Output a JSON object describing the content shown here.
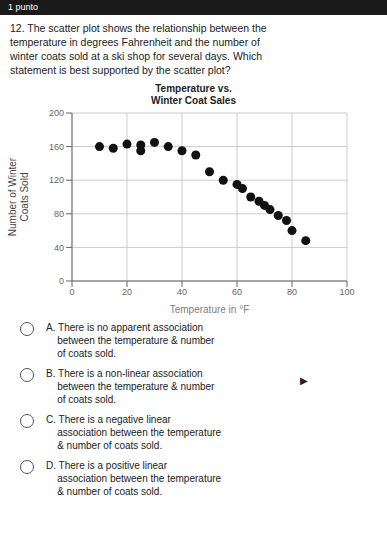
{
  "chart_data": {
    "type": "scatter",
    "title": "Temperature vs.\nWinter Coat Sales",
    "xlabel": "Temperature in °F",
    "ylabel": "Number of Winter\nCoats Sold",
    "x": [
      10,
      15,
      20,
      25,
      25,
      30,
      35,
      40,
      45,
      50,
      55,
      60,
      62,
      65,
      68,
      70,
      72,
      75,
      78,
      80,
      85
    ],
    "values": [
      160,
      158,
      163,
      162,
      155,
      165,
      160,
      155,
      150,
      130,
      120,
      115,
      110,
      100,
      95,
      90,
      85,
      78,
      72,
      60,
      48
    ],
    "xlim": [
      0,
      100
    ],
    "ylim": [
      0,
      200
    ],
    "xticks": [
      0,
      20,
      40,
      60,
      80,
      100
    ],
    "yticks": [
      0,
      40,
      80,
      120,
      160,
      200
    ],
    "color": "#111111",
    "grid": true,
    "annotations": [
      "1 punto",
      "12. The scatter plot shows the relationship between the\ntemperature in degrees Fahrenheit and the number of\nwinter coats sold at a ski shop for several days. Which\nstatement is best supported by the scatter plot?",
      "A. There is no apparent association\n    between the temperature & number\n    of coats sold.",
      "B. There is a non-linear association\n    between the temperature & number\n    of coats sold.",
      "C. There is a negative linear\n    association between the temperature\n    & number of coats sold.",
      "D. There is a positive linear\n    association between the temperature\n    & number of coats sold.",
      "▶"
    ]
  }
}
